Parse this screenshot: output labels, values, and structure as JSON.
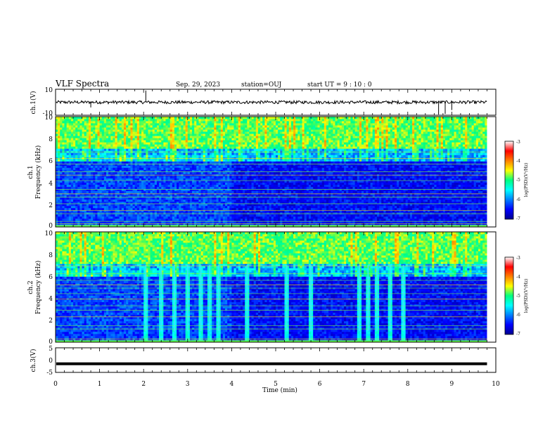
{
  "header": {
    "title": "VLF Spectra",
    "date": "Sep. 29, 2023",
    "station": "station=OUJ",
    "start": "start  UT =   9  : 10 : 0"
  },
  "chart_data": [
    {
      "type": "line",
      "name": "ch1-waveform",
      "ylabel": "ch.1(V)",
      "ylim": [
        -10,
        10
      ],
      "yticks": [
        "10",
        "-10"
      ],
      "xlim": [
        0,
        10
      ],
      "data_extent_min": 9.8,
      "description_level": 0,
      "noise_amplitude": 1.2,
      "spikes": [
        [
          0.8,
          -4
        ],
        [
          2.05,
          9
        ],
        [
          8.7,
          -9.5
        ],
        [
          8.85,
          -9
        ],
        [
          9.0,
          -6
        ]
      ]
    },
    {
      "type": "heatmap",
      "name": "ch1-spectrogram",
      "ylabel": "ch.1\nFrequency (kHz)",
      "ylabel_line1": "ch.1",
      "ylabel_line2": "Frequency (kHz)",
      "ylim": [
        0,
        10
      ],
      "yticks": [
        "0",
        "2",
        "4",
        "6",
        "8",
        "10"
      ],
      "xlim": [
        0,
        10
      ],
      "data_extent_min": 9.8,
      "colorbar": {
        "label": "log(PSD)(V²/Hz)",
        "ticks": [
          "-3",
          "-4",
          "-5",
          "-6",
          "-7"
        ],
        "range": [
          -7,
          -3
        ]
      },
      "lines_khz": [
        0.3,
        0.5,
        1.2,
        1.5,
        2.1,
        2.7,
        3.0,
        3.4,
        4.2,
        4.7,
        5.0,
        5.7,
        6.2,
        6.8
      ],
      "bursts_min": []
    },
    {
      "type": "heatmap",
      "name": "ch2-spectrogram",
      "ylabel_line1": "ch.2",
      "ylabel_line2": "Frequency (kHz)",
      "ylim": [
        0,
        10
      ],
      "yticks": [
        "0",
        "2",
        "4",
        "6",
        "8",
        "10"
      ],
      "xlim": [
        0,
        10
      ],
      "data_extent_min": 9.8,
      "colorbar": {
        "label": "log(PSD)(V²/Hz)",
        "ticks": [
          "-3",
          "-4",
          "-5",
          "-6",
          "-7"
        ],
        "range": [
          -7,
          -3
        ]
      },
      "lines_khz": [
        0.3,
        1.2,
        1.5,
        2.3,
        2.9,
        3.3,
        3.9,
        4.4,
        4.9,
        5.2,
        5.6,
        6.2,
        6.9
      ],
      "bursts_min": [
        2.05,
        2.4,
        2.7,
        3.0,
        3.3,
        3.5,
        3.7,
        4.35,
        5.25,
        5.8,
        6.9,
        7.1,
        7.3,
        7.6,
        7.9
      ]
    },
    {
      "type": "line",
      "name": "ch3-waveform",
      "ylabel": "ch.3(V)",
      "ylim": [
        -5,
        5
      ],
      "yticks": [
        "5",
        "0",
        "-5"
      ],
      "xlim": [
        0,
        10
      ],
      "data_extent_min": 9.8,
      "level": -1.5
    }
  ],
  "xaxis": {
    "label": "Time  (min)",
    "ticks": [
      "0",
      "1",
      "2",
      "3",
      "4",
      "5",
      "6",
      "7",
      "8",
      "9",
      "10"
    ]
  }
}
